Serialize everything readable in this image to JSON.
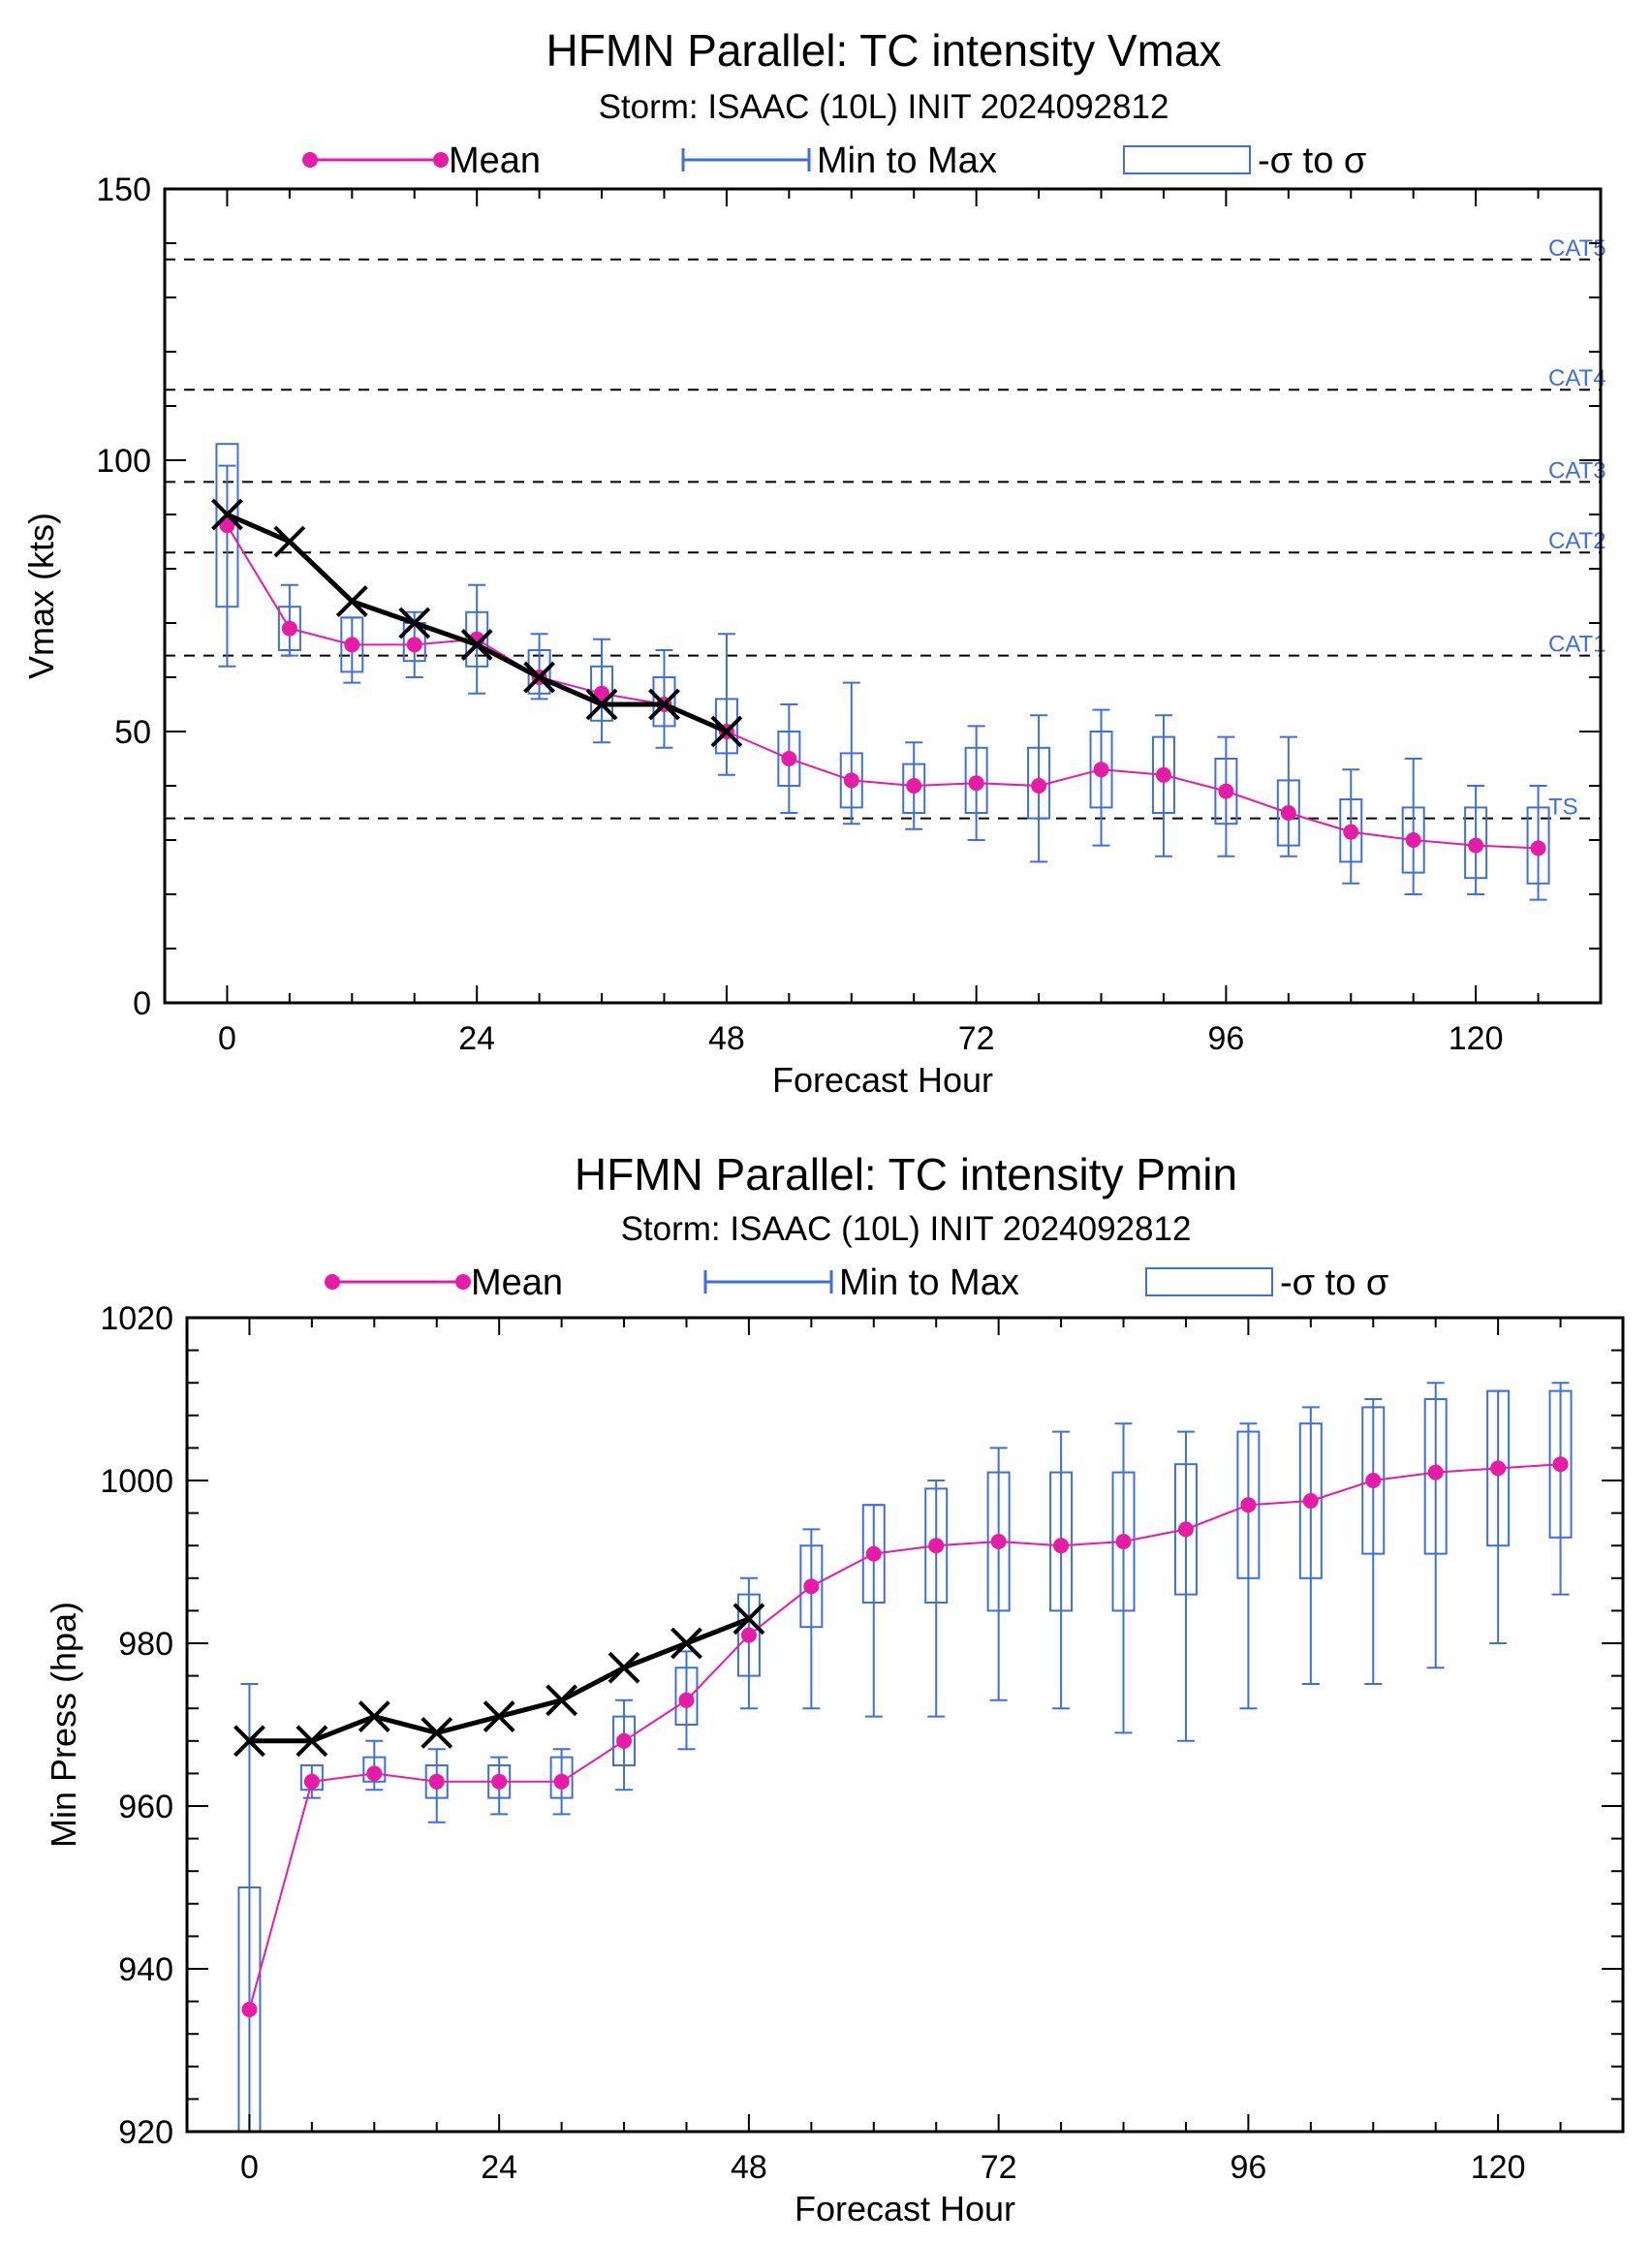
{
  "colors": {
    "mean": "#e81aa8",
    "spread": "#3e6fe0",
    "observed": "#000000",
    "threshold": "#000000",
    "category_label": "#3e6fe0"
  },
  "chart_data": [
    {
      "type": "box",
      "title": "HFMN Parallel: TC intensity Vmax",
      "subtitle": "Storm: ISAAC (10L) INIT 2024092812",
      "xlabel": "Forecast Hour",
      "ylabel": "Vmax (kts)",
      "xlim": [
        -6,
        132
      ],
      "ylim": [
        0,
        150
      ],
      "xticks": [
        0,
        24,
        48,
        72,
        96,
        120
      ],
      "yticks": [
        0,
        50,
        100,
        150
      ],
      "legend": {
        "placement": "top",
        "entries": [
          {
            "label": "Mean",
            "kind": "mean"
          },
          {
            "label": "Min to Max",
            "kind": "range"
          },
          {
            "label": "-σ to σ",
            "kind": "sigma"
          }
        ]
      },
      "thresholds": [
        {
          "label": "TS",
          "value": 34
        },
        {
          "label": "CAT1",
          "value": 64
        },
        {
          "label": "CAT2",
          "value": 83
        },
        {
          "label": "CAT3",
          "value": 96
        },
        {
          "label": "CAT4",
          "value": 113
        },
        {
          "label": "CAT5",
          "value": 137
        }
      ],
      "x": [
        0,
        6,
        12,
        18,
        24,
        30,
        36,
        42,
        48,
        54,
        60,
        66,
        72,
        78,
        84,
        90,
        96,
        102,
        108,
        114,
        120,
        126
      ],
      "mean": [
        88,
        69,
        66,
        66,
        67,
        60,
        57,
        55,
        50,
        45,
        41,
        40,
        40.5,
        40,
        43,
        42,
        39,
        35,
        31.5,
        30,
        29,
        28.5
      ],
      "min": [
        62,
        64,
        59,
        60,
        57,
        56,
        48,
        47,
        42,
        35,
        33,
        32,
        30,
        26,
        29,
        27,
        27,
        27,
        22,
        20,
        20,
        19
      ],
      "max": [
        99,
        77,
        71,
        72,
        77,
        68,
        67,
        65,
        68,
        55,
        59,
        48,
        51,
        53,
        54,
        53,
        49,
        49,
        43,
        45,
        40,
        40
      ],
      "sigma_low": [
        73,
        65,
        61,
        63,
        62,
        57,
        52,
        51,
        46,
        40,
        36,
        35,
        35,
        34,
        36,
        35,
        33,
        29,
        26,
        24,
        23,
        22
      ],
      "sigma_high": [
        103,
        73,
        71,
        70,
        72,
        65,
        62,
        60,
        56,
        50,
        46,
        44,
        47,
        47,
        50,
        49,
        45,
        41,
        37.5,
        36,
        36,
        36
      ],
      "observed_x": [
        0,
        6,
        12,
        18,
        24,
        30,
        36,
        42,
        48
      ],
      "observed": [
        90,
        85,
        74,
        70,
        66,
        60,
        55,
        55,
        50
      ]
    },
    {
      "type": "box",
      "title": "HFMN Parallel: TC intensity Pmin",
      "subtitle": "Storm: ISAAC (10L) INIT 2024092812",
      "xlabel": "Forecast Hour",
      "ylabel": "Min Press (hpa)",
      "xlim": [
        -6,
        132
      ],
      "ylim": [
        920,
        1020
      ],
      "xticks": [
        0,
        24,
        48,
        72,
        96,
        120
      ],
      "yticks": [
        920,
        940,
        960,
        980,
        1000,
        1020
      ],
      "legend": {
        "placement": "top",
        "entries": [
          {
            "label": "Mean",
            "kind": "mean"
          },
          {
            "label": "Min to Max",
            "kind": "range"
          },
          {
            "label": "-σ to σ",
            "kind": "sigma"
          }
        ]
      },
      "thresholds": [],
      "x": [
        0,
        6,
        12,
        18,
        24,
        30,
        36,
        42,
        48,
        54,
        60,
        66,
        72,
        78,
        84,
        90,
        96,
        102,
        108,
        114,
        120,
        126
      ],
      "mean": [
        935,
        963,
        964,
        963,
        963,
        963,
        968,
        973,
        981,
        987,
        991,
        992,
        992.5,
        992,
        992.5,
        994,
        997,
        997.5,
        1000,
        1001,
        1001.5,
        1002
      ],
      "min": [
        920,
        961,
        962,
        958,
        959,
        959,
        962,
        967,
        972,
        972,
        971,
        971,
        973,
        972,
        969,
        968,
        972,
        975,
        975,
        977,
        980,
        986
      ],
      "max": [
        975,
        965,
        968,
        967,
        966,
        967,
        973,
        979,
        988,
        994,
        997,
        1000,
        1004,
        1006,
        1007,
        1006,
        1007,
        1009,
        1010,
        1012,
        1011,
        1012
      ],
      "sigma_low": [
        920,
        962,
        963,
        961,
        961,
        961,
        965,
        970,
        976,
        982,
        985,
        985,
        984,
        984,
        984,
        986,
        988,
        988,
        991,
        991,
        992,
        993
      ],
      "sigma_high": [
        950,
        965,
        966,
        965,
        965,
        966,
        971,
        977,
        986,
        992,
        997,
        999,
        1001,
        1001,
        1001,
        1002,
        1006,
        1007,
        1009,
        1010,
        1011,
        1011
      ],
      "observed_x": [
        0,
        6,
        12,
        18,
        24,
        30,
        36,
        42,
        48
      ],
      "observed": [
        968,
        968,
        971,
        969,
        971,
        973,
        977,
        980,
        983
      ]
    }
  ]
}
